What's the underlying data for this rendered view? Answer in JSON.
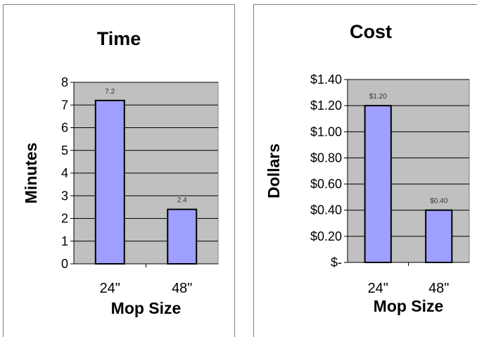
{
  "colors": {
    "bar": "#9f9fff",
    "plot_bg": "#c0c0c0",
    "grid": "#000000"
  },
  "chart_data": [
    {
      "type": "bar",
      "title": "Time",
      "xlabel": "Mop Size",
      "ylabel": "Minutes",
      "categories": [
        "24\"",
        "48\""
      ],
      "values": [
        7.2,
        2.4
      ],
      "data_labels": [
        "7.2",
        "2.4"
      ],
      "ylim": [
        0,
        8
      ],
      "yticks": [
        "0",
        "1",
        "2",
        "3",
        "4",
        "5",
        "6",
        "7",
        "8"
      ],
      "grid": true
    },
    {
      "type": "bar",
      "title": "Cost",
      "xlabel": "Mop Size",
      "ylabel": "Dollars",
      "categories": [
        "24\"",
        "48\""
      ],
      "values": [
        1.2,
        0.4
      ],
      "data_labels": [
        "$1.20",
        "$0.40"
      ],
      "ylim": [
        0,
        1.4
      ],
      "yticks": [
        "$-",
        "$0.20",
        "$0.40",
        "$0.60",
        "$0.80",
        "$1.00",
        "$1.20",
        "$1.40"
      ],
      "grid": true
    }
  ]
}
